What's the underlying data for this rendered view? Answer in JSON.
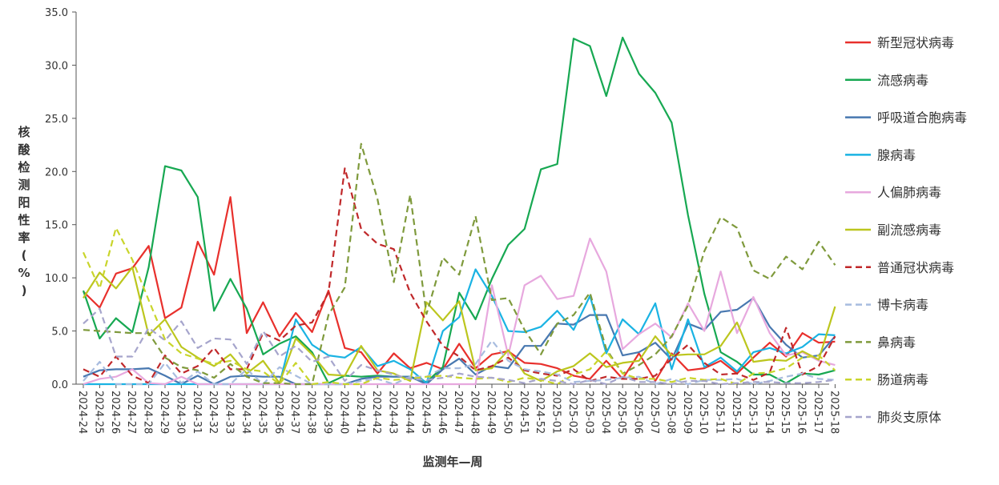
{
  "chart_data": {
    "type": "line",
    "title": "",
    "xlabel": "监测年—周",
    "ylabel": "核酸检测阳性率(%)",
    "ylim": [
      0,
      35
    ],
    "yticks": [
      "0.0",
      "5.0",
      "10.0",
      "15.0",
      "20.0",
      "25.0",
      "30.0",
      "35.0"
    ],
    "legend_position": "right",
    "categories": [
      "2024-24",
      "2024-25",
      "2024-26",
      "2024-27",
      "2024-28",
      "2024-29",
      "2024-30",
      "2024-31",
      "2024-32",
      "2024-33",
      "2024-34",
      "2024-35",
      "2024-36",
      "2024-37",
      "2024-38",
      "2024-39",
      "2024-40",
      "2024-41",
      "2024-42",
      "2024-43",
      "2024-44",
      "2024-45",
      "2024-46",
      "2024-47",
      "2024-48",
      "2024-49",
      "2024-50",
      "2024-51",
      "2024-52",
      "2025-01",
      "2025-02",
      "2025-03",
      "2025-04",
      "2025-05",
      "2025-06",
      "2025-07",
      "2025-08",
      "2025-09",
      "2025-10",
      "2025-11",
      "2025-12",
      "2025-13",
      "2025-14",
      "2025-15",
      "2025-16",
      "2025-17",
      "2025-18"
    ],
    "series": [
      {
        "name": "新型冠状病毒",
        "color": "#e8302c",
        "dash": "solid",
        "values": [
          8.7,
          7.2,
          10.4,
          10.9,
          13.0,
          6.2,
          7.2,
          13.4,
          10.3,
          17.6,
          4.8,
          7.7,
          4.5,
          6.7,
          4.9,
          8.8,
          3.4,
          3.0,
          1.0,
          2.9,
          1.5,
          2.0,
          1.4,
          3.8,
          1.5,
          2.8,
          3.1,
          2.0,
          1.9,
          1.5,
          0.8,
          0.5,
          2.2,
          0.5,
          2.9,
          0.3,
          2.9,
          1.3,
          1.5,
          2.2,
          1.0,
          2.5,
          3.9,
          2.6,
          4.8,
          3.9,
          4.0
        ]
      },
      {
        "name": "流感病毒",
        "color": "#17a852",
        "dash": "solid",
        "values": [
          8.8,
          4.3,
          6.2,
          4.9,
          11.0,
          20.5,
          20.1,
          17.6,
          6.9,
          9.9,
          7.1,
          2.8,
          3.8,
          4.5,
          3.0,
          0.1,
          0.8,
          0.7,
          0.8,
          0.7,
          0.7,
          0.2,
          1.6,
          8.6,
          6.1,
          9.9,
          13.1,
          14.6,
          20.2,
          20.7,
          32.5,
          31.8,
          27.1,
          32.6,
          29.2,
          27.4,
          24.6,
          15.9,
          8.5,
          3.0,
          2.1,
          0.9,
          0.9,
          0.1,
          1.0,
          0.9,
          1.3
        ]
      },
      {
        "name": "呼吸道合胞病毒",
        "color": "#4878b0",
        "dash": "solid",
        "values": [
          0.7,
          1.3,
          1.4,
          1.4,
          1.5,
          0.8,
          0.0,
          0.8,
          0.0,
          0.7,
          0.8,
          0.7,
          0.7,
          0.0,
          0.0,
          0.0,
          0.0,
          0.5,
          0.7,
          0.7,
          0.7,
          0.0,
          1.4,
          2.4,
          0.9,
          1.7,
          1.5,
          3.6,
          3.6,
          5.7,
          5.6,
          6.5,
          6.5,
          2.7,
          3.0,
          3.9,
          2.3,
          5.7,
          5.1,
          6.8,
          7.0,
          8.1,
          5.4,
          3.7,
          2.5,
          2.7,
          4.5
        ]
      },
      {
        "name": "腺病毒",
        "color": "#1ab3e3",
        "dash": "solid",
        "values": [
          0.0,
          0.0,
          0.0,
          0.0,
          0.0,
          0.0,
          0.0,
          0.0,
          0.0,
          0.0,
          0.0,
          0.0,
          0.0,
          6.1,
          3.7,
          2.7,
          2.5,
          3.5,
          1.7,
          2.2,
          1.4,
          0.1,
          5.0,
          6.3,
          10.8,
          8.3,
          5.0,
          4.9,
          5.4,
          6.9,
          5.1,
          8.3,
          2.9,
          6.1,
          4.7,
          7.6,
          1.4,
          6.1,
          1.6,
          2.5,
          1.2,
          3.0,
          3.4,
          2.9,
          3.5,
          4.7,
          4.6
        ]
      },
      {
        "name": "人偏肺病毒",
        "color": "#e7a8de",
        "dash": "solid",
        "values": [
          0.0,
          0.5,
          0.7,
          1.4,
          0.1,
          0.0,
          0.7,
          0.0,
          0.0,
          0.0,
          0.0,
          0.0,
          0.0,
          0.0,
          0.0,
          0.0,
          0.0,
          0.0,
          0.0,
          0.0,
          0.0,
          0.0,
          0.0,
          0.0,
          0.0,
          9.3,
          2.7,
          9.3,
          10.2,
          8.0,
          8.3,
          13.7,
          10.6,
          3.3,
          4.7,
          5.7,
          4.4,
          7.6,
          5.0,
          10.6,
          4.8,
          8.2,
          4.8,
          2.7,
          3.0,
          2.2,
          1.8
        ]
      },
      {
        "name": "副流感病毒",
        "color": "#bcc61e",
        "dash": "solid",
        "values": [
          8.1,
          10.5,
          9.0,
          11.0,
          4.6,
          6.1,
          3.5,
          2.5,
          1.7,
          2.8,
          1.0,
          2.2,
          0.1,
          4.3,
          2.8,
          0.9,
          0.8,
          3.6,
          1.3,
          1.0,
          0.3,
          7.7,
          6.0,
          7.8,
          1.3,
          1.5,
          3.2,
          1.0,
          0.3,
          1.2,
          1.7,
          2.9,
          1.6,
          2.0,
          2.2,
          4.5,
          2.7,
          2.8,
          2.8,
          3.6,
          5.8,
          2.1,
          2.3,
          2.2,
          3.1,
          2.3,
          7.3
        ]
      },
      {
        "name": "普通冠状病毒",
        "color": "#c0282a",
        "dash": "8,5",
        "values": [
          1.4,
          0.7,
          2.6,
          0.8,
          0.1,
          2.7,
          1.0,
          1.7,
          3.4,
          1.4,
          1.4,
          4.8,
          4.1,
          5.5,
          5.8,
          8.6,
          20.3,
          14.6,
          13.2,
          12.7,
          8.6,
          5.9,
          3.6,
          2.6,
          1.3,
          1.7,
          2.5,
          1.3,
          1.0,
          0.8,
          1.4,
          0.3,
          0.7,
          0.5,
          0.5,
          0.8,
          2.4,
          3.7,
          2.0,
          0.9,
          1.0,
          0.4,
          1.1,
          5.3,
          0.9,
          1.7,
          4.5
        ]
      },
      {
        "name": "博卡病毒",
        "color": "#a8bcdf",
        "dash": "8,5",
        "values": [
          0.3,
          2.1,
          0.0,
          0.0,
          0.0,
          2.0,
          0.1,
          1.2,
          0.0,
          0.0,
          1.4,
          0.0,
          1.6,
          0.8,
          0.0,
          0.0,
          0.0,
          0.3,
          0.5,
          0.0,
          0.7,
          0.7,
          1.5,
          1.5,
          1.9,
          4.1,
          2.2,
          1.4,
          1.2,
          0.9,
          0.2,
          0.3,
          0.4,
          0.6,
          0.7,
          0.0,
          0.5,
          0.0,
          0.4,
          0.4,
          0.5,
          0.0,
          0.3,
          0.7,
          1.0,
          0.5,
          0.4
        ]
      },
      {
        "name": "鼻病毒",
        "color": "#7f9a3c",
        "dash": "8,5",
        "values": [
          5.1,
          5.0,
          4.9,
          4.8,
          4.8,
          2.5,
          1.6,
          1.3,
          0.6,
          1.9,
          0.7,
          0.1,
          0.1,
          0.0,
          0.0,
          6.5,
          9.1,
          22.6,
          17.4,
          9.6,
          17.8,
          6.6,
          11.9,
          10.3,
          15.8,
          7.9,
          8.1,
          5.1,
          2.8,
          5.7,
          6.5,
          8.6,
          3.3,
          1.0,
          1.8,
          2.8,
          4.5,
          7.4,
          12.5,
          15.7,
          14.7,
          10.7,
          9.9,
          12.0,
          10.8,
          13.4,
          11.2
        ]
      },
      {
        "name": "肠道病毒",
        "color": "#c9d52b",
        "dash": "8,5",
        "values": [
          12.4,
          9.0,
          14.7,
          11.7,
          7.9,
          4.2,
          2.9,
          2.4,
          1.9,
          2.2,
          1.4,
          1.2,
          0.0,
          2.0,
          0.0,
          0.2,
          0.0,
          0.0,
          0.6,
          0.4,
          0.5,
          0.7,
          0.8,
          0.6,
          0.5,
          0.6,
          0.2,
          0.6,
          0.4,
          0.0,
          0.9,
          1.4,
          3.1,
          1.0,
          0.5,
          0.5,
          0.2,
          0.6,
          0.4,
          0.5,
          0.0,
          1.0,
          1.1,
          1.5,
          2.5,
          2.7,
          1.3
        ]
      },
      {
        "name": "肺炎支原体",
        "color": "#a6a5cc",
        "dash": "8,5",
        "values": [
          5.7,
          7.1,
          2.6,
          2.6,
          5.3,
          4.1,
          5.9,
          3.4,
          4.3,
          4.2,
          1.9,
          5.0,
          2.6,
          3.6,
          2.1,
          2.6,
          0.3,
          1.8,
          1.3,
          0.9,
          0.5,
          0.4,
          0.6,
          1.0,
          0.7,
          0.6,
          0.4,
          0.1,
          0.5,
          0.3,
          0.0,
          0.4,
          0.0,
          0.7,
          0.2,
          0.2,
          0.0,
          0.3,
          0.3,
          0.0,
          0.1,
          0.2,
          0.2,
          0.1,
          0.1,
          0.2,
          0.4
        ]
      }
    ]
  }
}
